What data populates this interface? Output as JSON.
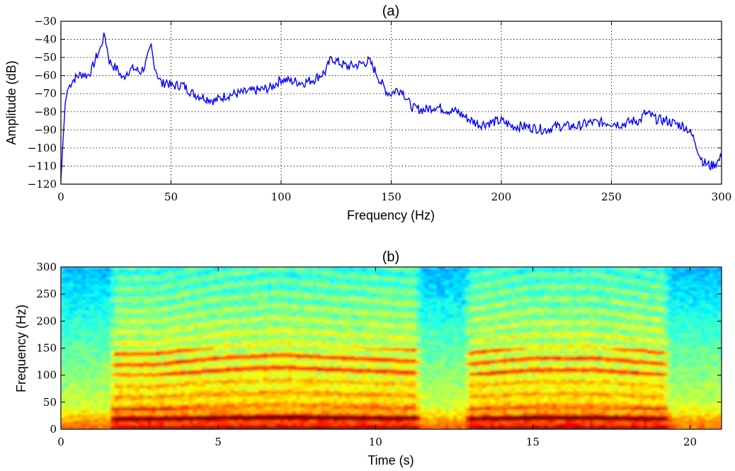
{
  "chart_data": [
    {
      "type": "line",
      "title": "(a)",
      "xlabel": "Frequency (Hz)",
      "ylabel": "Amplitude (dB)",
      "xlim": [
        0,
        300
      ],
      "ylim": [
        -120,
        -30
      ],
      "xticks": [
        0,
        50,
        100,
        150,
        200,
        250,
        300
      ],
      "yticks": [
        -30,
        -40,
        -50,
        -60,
        -70,
        -80,
        -90,
        -100,
        -110,
        -120
      ],
      "xtick_labels": [
        "0",
        "50",
        "100",
        "150",
        "200",
        "250",
        "300"
      ],
      "ytick_labels": [
        "−30",
        "−40",
        "−50",
        "−60",
        "−70",
        "−80",
        "−90",
        "−100",
        "−110",
        "−120"
      ],
      "grid": true,
      "line_color": "#0000ff",
      "series": [
        {
          "x": [
            0,
            1,
            2,
            3,
            5,
            8,
            10,
            12,
            14,
            16,
            18,
            19,
            20,
            21,
            22,
            24,
            26,
            28,
            30,
            33,
            36,
            38,
            40,
            41,
            42,
            44,
            46,
            48,
            50,
            55,
            60,
            65,
            70,
            75,
            80,
            85,
            90,
            95,
            100,
            105,
            110,
            115,
            120,
            123,
            125,
            130,
            135,
            140,
            143,
            145,
            148,
            150,
            152,
            155,
            158,
            160,
            165,
            170,
            175,
            180,
            185,
            190,
            195,
            200,
            205,
            210,
            215,
            220,
            225,
            230,
            235,
            240,
            245,
            250,
            255,
            260,
            263,
            265,
            268,
            270,
            275,
            280,
            283,
            285,
            288,
            290,
            292,
            295,
            298,
            300
          ],
          "y": [
            -118,
            -95,
            -75,
            -68,
            -63,
            -60,
            -59,
            -60,
            -57,
            -50,
            -45,
            -40,
            -38,
            -45,
            -52,
            -55,
            -57,
            -62,
            -58,
            -56,
            -58,
            -55,
            -48,
            -44,
            -52,
            -60,
            -65,
            -63,
            -66,
            -65,
            -70,
            -72,
            -74,
            -71,
            -70,
            -69,
            -68,
            -67,
            -62,
            -63,
            -64,
            -62,
            -58,
            -50,
            -52,
            -55,
            -54,
            -52,
            -58,
            -63,
            -69,
            -70,
            -68,
            -68,
            -75,
            -78,
            -79,
            -77,
            -79,
            -80,
            -84,
            -87,
            -86,
            -85,
            -88,
            -88,
            -89,
            -90,
            -88,
            -88,
            -88,
            -86,
            -86,
            -86,
            -87,
            -85,
            -85,
            -81,
            -82,
            -84,
            -85,
            -87,
            -88,
            -90,
            -96,
            -104,
            -108,
            -110,
            -108,
            -105
          ]
        }
      ]
    },
    {
      "type": "heatmap",
      "title": "(b)",
      "xlabel": "Time (s)",
      "ylabel": "Frequency (Hz)",
      "xlim": [
        0,
        21
      ],
      "ylim": [
        0,
        300
      ],
      "xticks": [
        0,
        5,
        10,
        15,
        20
      ],
      "yticks": [
        0,
        50,
        100,
        150,
        200,
        250,
        300
      ],
      "xtick_labels": [
        "0",
        "5",
        "10",
        "15",
        "20"
      ],
      "ytick_labels": [
        "0",
        "50",
        "100",
        "150",
        "200",
        "250",
        "300"
      ],
      "colormap": "jet",
      "voiced_segments": [
        {
          "start": 1.5,
          "end": 11.5
        },
        {
          "start": 12.8,
          "end": 19.4
        }
      ],
      "fundamental_track": [
        {
          "t": 1.5,
          "f": 20
        },
        {
          "t": 3.0,
          "f": 20
        },
        {
          "t": 5.0,
          "f": 22
        },
        {
          "t": 7.0,
          "f": 23
        },
        {
          "t": 9.0,
          "f": 22
        },
        {
          "t": 11.5,
          "f": 21
        },
        {
          "t": 12.8,
          "f": 20
        },
        {
          "t": 15.0,
          "f": 22
        },
        {
          "t": 17.0,
          "f": 22
        },
        {
          "t": 19.4,
          "f": 20
        }
      ],
      "harmonic_band_hz": [
        100,
        150
      ]
    }
  ]
}
